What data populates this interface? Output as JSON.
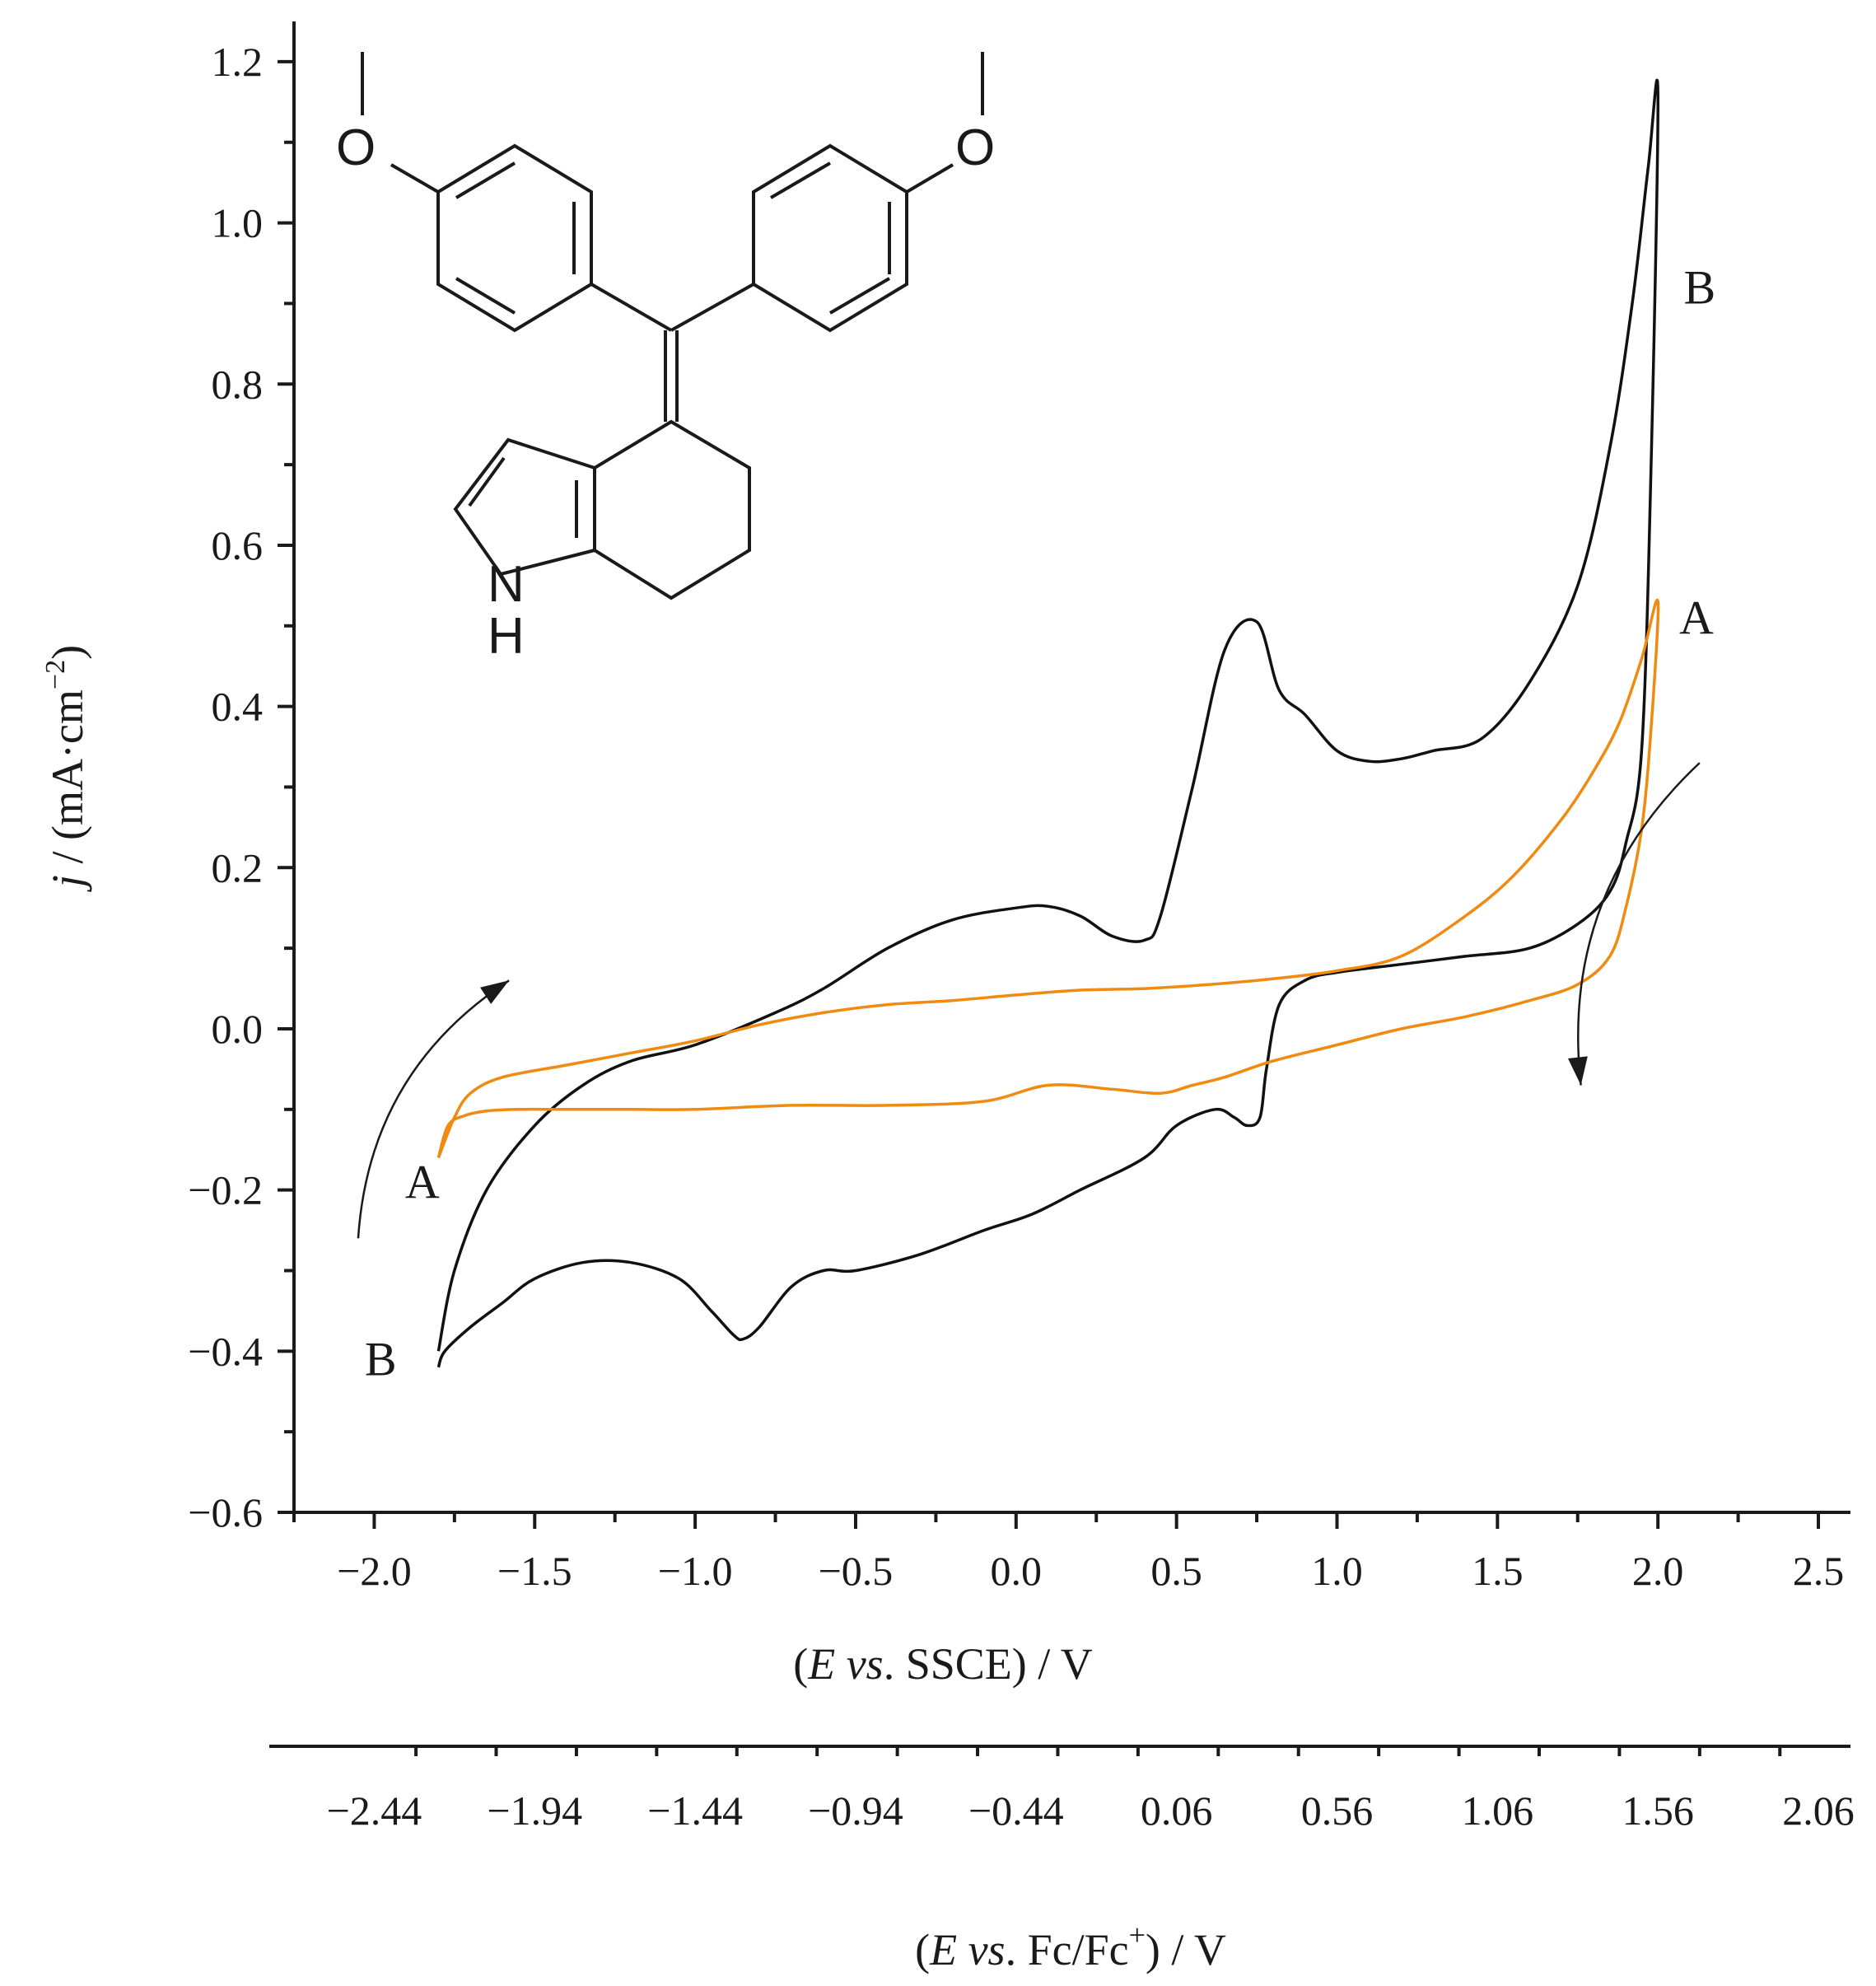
{
  "chart_data": {
    "type": "line",
    "xlabel": {
      "pre": "(",
      "italic1": "E",
      "mid1": " ",
      "italic2": "vs",
      "post": ". SSCE) / V"
    },
    "x2label": {
      "pre": "(",
      "italic1": "E",
      "mid1": " ",
      "italic2": "vs",
      "mid2": ". Fc/Fc",
      "sup": "+",
      "post": ") / V"
    },
    "ylabel": {
      "italic": "j",
      "mid": " / (mA·cm",
      "sup": "−2",
      "post": ")"
    },
    "xlim": [
      -2.25,
      2.6
    ],
    "ylim": [
      -0.6,
      1.25
    ],
    "xticks": [
      -2.0,
      -1.5,
      -1.0,
      -0.5,
      0.0,
      0.5,
      1.0,
      1.5,
      2.0,
      2.5
    ],
    "xtick_labels": [
      "−2.0",
      "−1.5",
      "−1.0",
      "−0.5",
      "0.0",
      "0.5",
      "1.0",
      "1.5",
      "2.0",
      "2.5"
    ],
    "yticks": [
      -0.6,
      -0.4,
      -0.2,
      0.0,
      0.2,
      0.4,
      0.6,
      0.8,
      1.0,
      1.2
    ],
    "ytick_labels": [
      "−0.6",
      "−0.4",
      "−0.2",
      "0.0",
      "0.2",
      "0.4",
      "0.6",
      "0.8",
      "1.0",
      "1.2"
    ],
    "x2ticks": [
      -2.44,
      -1.94,
      -1.44,
      -0.94,
      -0.44,
      0.06,
      0.56,
      1.06,
      1.56,
      2.06
    ],
    "x2tick_labels": [
      "−2.44",
      "−1.94",
      "−1.44",
      "−0.94",
      "−0.44",
      "0.06",
      "0.56",
      "1.06",
      "1.56",
      "2.06"
    ],
    "series": [
      {
        "name": "B",
        "color": "#111111",
        "x": [
          -1.8,
          -1.75,
          -1.65,
          -1.5,
          -1.35,
          -1.2,
          -1.0,
          -0.75,
          -0.6,
          -0.4,
          -0.2,
          0.0,
          0.1,
          0.2,
          0.3,
          0.4,
          0.45,
          0.55,
          0.65,
          0.75,
          0.82,
          0.9,
          1.0,
          1.1,
          1.2,
          1.3,
          1.45,
          1.6,
          1.75,
          1.85,
          1.92,
          1.97,
          2.0,
          1.98,
          1.95,
          1.9,
          1.85,
          1.75,
          1.6,
          1.4,
          1.2,
          1.0,
          0.9,
          0.82,
          0.78,
          0.76,
          0.72,
          0.68,
          0.62,
          0.5,
          0.4,
          0.2,
          0.05,
          -0.1,
          -0.3,
          -0.5,
          -0.6,
          -0.7,
          -0.8,
          -0.85,
          -0.88,
          -0.95,
          -1.05,
          -1.2,
          -1.35,
          -1.5,
          -1.6,
          -1.7,
          -1.78,
          -1.8
        ],
        "y": [
          -0.4,
          -0.3,
          -0.2,
          -0.12,
          -0.07,
          -0.04,
          -0.02,
          0.02,
          0.05,
          0.1,
          0.135,
          0.15,
          0.152,
          0.14,
          0.115,
          0.11,
          0.14,
          0.3,
          0.47,
          0.505,
          0.42,
          0.39,
          0.345,
          0.332,
          0.335,
          0.345,
          0.36,
          0.43,
          0.55,
          0.72,
          0.9,
          1.07,
          1.16,
          0.72,
          0.35,
          0.23,
          0.17,
          0.13,
          0.1,
          0.09,
          0.08,
          0.07,
          0.06,
          0.03,
          -0.05,
          -0.11,
          -0.12,
          -0.11,
          -0.1,
          -0.12,
          -0.16,
          -0.2,
          -0.23,
          -0.25,
          -0.28,
          -0.3,
          -0.3,
          -0.32,
          -0.37,
          -0.385,
          -0.38,
          -0.35,
          -0.31,
          -0.29,
          -0.29,
          -0.31,
          -0.34,
          -0.37,
          -0.4,
          -0.42
        ]
      },
      {
        "name": "A",
        "color": "#f08a10",
        "x": [
          -1.8,
          -1.75,
          -1.7,
          -1.6,
          -1.4,
          -1.2,
          -1.0,
          -0.8,
          -0.6,
          -0.4,
          -0.2,
          0.0,
          0.2,
          0.4,
          0.6,
          0.8,
          1.0,
          1.2,
          1.4,
          1.55,
          1.7,
          1.8,
          1.88,
          1.95,
          2.0,
          1.98,
          1.95,
          1.9,
          1.85,
          1.75,
          1.6,
          1.4,
          1.2,
          1.0,
          0.8,
          0.65,
          0.55,
          0.45,
          0.3,
          0.1,
          -0.1,
          -0.4,
          -0.7,
          -1.0,
          -1.2,
          -1.4,
          -1.55,
          -1.65,
          -1.72,
          -1.77,
          -1.8
        ],
        "y": [
          -0.16,
          -0.11,
          -0.08,
          -0.06,
          -0.045,
          -0.03,
          -0.015,
          0.005,
          0.02,
          0.03,
          0.035,
          0.042,
          0.048,
          0.05,
          0.055,
          0.062,
          0.072,
          0.09,
          0.14,
          0.19,
          0.26,
          0.32,
          0.38,
          0.46,
          0.53,
          0.38,
          0.25,
          0.15,
          0.09,
          0.055,
          0.035,
          0.015,
          0.0,
          -0.02,
          -0.04,
          -0.06,
          -0.07,
          -0.08,
          -0.075,
          -0.07,
          -0.09,
          -0.095,
          -0.095,
          -0.1,
          -0.1,
          -0.1,
          -0.1,
          -0.102,
          -0.108,
          -0.12,
          -0.16
        ]
      }
    ],
    "annotations": [
      {
        "text": "B",
        "x": 2.13,
        "y": 0.9
      },
      {
        "text": "A",
        "x": 2.12,
        "y": 0.49
      },
      {
        "text": "A",
        "x": -1.85,
        "y": -0.21
      },
      {
        "text": "B",
        "x": -1.98,
        "y": -0.43
      }
    ],
    "arrows": [
      {
        "d": "cw-start",
        "from": [
          -2.05,
          -0.26
        ],
        "to": [
          -1.58,
          0.06
        ]
      },
      {
        "d": "ccw-end",
        "from": [
          2.13,
          0.33
        ],
        "to": [
          1.76,
          -0.07
        ]
      }
    ]
  },
  "molecule": {
    "atoms": {
      "O_left": "O",
      "O_right": "O",
      "N": "N",
      "H": "H"
    }
  }
}
